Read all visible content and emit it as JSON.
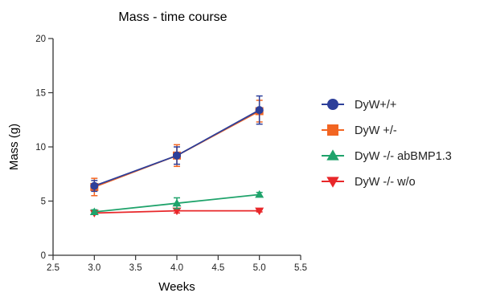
{
  "chart_data": {
    "type": "line",
    "title": "Mass - time course",
    "xlabel": "Weeks",
    "ylabel": "Mass (g)",
    "xlim": [
      2.5,
      5.5
    ],
    "ylim": [
      0,
      20
    ],
    "xticks": [
      2.5,
      3.0,
      3.5,
      4.0,
      4.5,
      5.0,
      5.5
    ],
    "xtick_labels": [
      "2.5",
      "3.0",
      "3.5",
      "4.0",
      "4.5",
      "5.0",
      "5.5"
    ],
    "yticks": [
      0,
      5,
      10,
      15,
      20
    ],
    "ytick_labels": [
      "0",
      "5",
      "10",
      "15",
      "20"
    ],
    "grid": false,
    "legend_position": "right",
    "x": [
      3.0,
      4.0,
      5.0
    ],
    "series": [
      {
        "name": "DyW+/+",
        "values": [
          6.4,
          9.2,
          13.4
        ],
        "errors": [
          0.5,
          0.8,
          1.3
        ],
        "color": "#2d3f9a",
        "marker": "circle"
      },
      {
        "name": "DyW +/-",
        "values": [
          6.3,
          9.2,
          13.3
        ],
        "errors": [
          0.8,
          1.0,
          1.0
        ],
        "color": "#f26522",
        "marker": "square"
      },
      {
        "name": "DyW -/- abBMP1.3",
        "values": [
          4.0,
          4.8,
          5.6
        ],
        "errors": [
          0.2,
          0.5,
          0.2
        ],
        "color": "#1fa36b",
        "marker": "triangle-up"
      },
      {
        "name": "DyW -/- w/o",
        "values": [
          3.9,
          4.1,
          4.1
        ],
        "errors": [
          0.1,
          0.2,
          0.1
        ],
        "color": "#e8272a",
        "marker": "triangle-down"
      }
    ]
  }
}
